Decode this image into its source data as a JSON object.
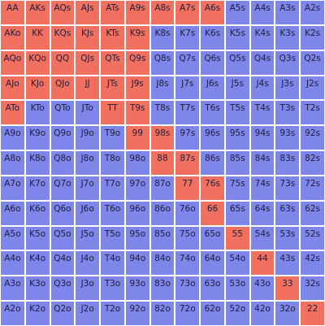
{
  "grid": {
    "colors": {
      "selected": "#f2705f",
      "unselected": "#7f86ea",
      "text": "#1e1e3c"
    },
    "rows": [
      [
        "AA",
        "AKs",
        "AQs",
        "AJs",
        "ATs",
        "A9s",
        "A8s",
        "A7s",
        "A6s",
        "A5s",
        "A4s",
        "A3s",
        "A2s"
      ],
      [
        "AKo",
        "KK",
        "KQs",
        "KJs",
        "KTs",
        "K9s",
        "K8s",
        "K7s",
        "K6s",
        "K5s",
        "K4s",
        "K3s",
        "K2s"
      ],
      [
        "AQo",
        "KQo",
        "QQ",
        "QJs",
        "QTs",
        "Q9s",
        "Q8s",
        "Q7s",
        "Q6s",
        "Q5s",
        "Q4s",
        "Q3s",
        "Q2s"
      ],
      [
        "AJo",
        "KJo",
        "QJo",
        "JJ",
        "JTs",
        "J9s",
        "J8s",
        "J7s",
        "J6s",
        "J5s",
        "J4s",
        "J3s",
        "J2s"
      ],
      [
        "ATo",
        "KTo",
        "QTo",
        "JTo",
        "TT",
        "T9s",
        "T8s",
        "T7s",
        "T6s",
        "T5s",
        "T4s",
        "T3s",
        "T2s"
      ],
      [
        "A9o",
        "K9o",
        "Q9o",
        "J9o",
        "T9o",
        "99",
        "98s",
        "97s",
        "96s",
        "95s",
        "94s",
        "93s",
        "92s"
      ],
      [
        "A8o",
        "K8o",
        "Q8o",
        "J8o",
        "T8o",
        "98o",
        "88",
        "87s",
        "86s",
        "85s",
        "84s",
        "83s",
        "82s"
      ],
      [
        "A7o",
        "K7o",
        "Q7o",
        "J7o",
        "T7o",
        "97o",
        "87o",
        "77",
        "76s",
        "75s",
        "74s",
        "73s",
        "72s"
      ],
      [
        "A6o",
        "K6o",
        "Q6o",
        "J6o",
        "T6o",
        "96o",
        "86o",
        "76o",
        "66",
        "65s",
        "64s",
        "63s",
        "62s"
      ],
      [
        "A5o",
        "K5o",
        "Q5o",
        "J5o",
        "T5o",
        "95o",
        "85o",
        "75o",
        "65o",
        "55",
        "54s",
        "53s",
        "52s"
      ],
      [
        "A4o",
        "K4o",
        "Q4o",
        "J4o",
        "T4o",
        "94o",
        "84o",
        "74o",
        "64o",
        "54o",
        "44",
        "43s",
        "42s"
      ],
      [
        "A3o",
        "K3o",
        "Q3o",
        "J3o",
        "T3o",
        "93o",
        "83o",
        "73o",
        "63o",
        "53o",
        "43o",
        "33",
        "32s"
      ],
      [
        "A2o",
        "K2o",
        "Q2o",
        "J2o",
        "T2o",
        "92o",
        "82o",
        "72o",
        "62o",
        "52o",
        "42o",
        "32o",
        "22"
      ]
    ],
    "selected": [
      "AA",
      "AKs",
      "AQs",
      "AJs",
      "ATs",
      "A9s",
      "A8s",
      "A7s",
      "A6s",
      "AKo",
      "KK",
      "KQs",
      "KJs",
      "KTs",
      "K9s",
      "AQo",
      "KQo",
      "QQ",
      "QJs",
      "QTs",
      "Q9s",
      "AJo",
      "KJo",
      "QJo",
      "JJ",
      "JTs",
      "J9s",
      "ATo",
      "TT",
      "T9s",
      "99",
      "98s",
      "88",
      "87s",
      "77",
      "76s",
      "66",
      "55",
      "44",
      "33",
      "22"
    ]
  }
}
